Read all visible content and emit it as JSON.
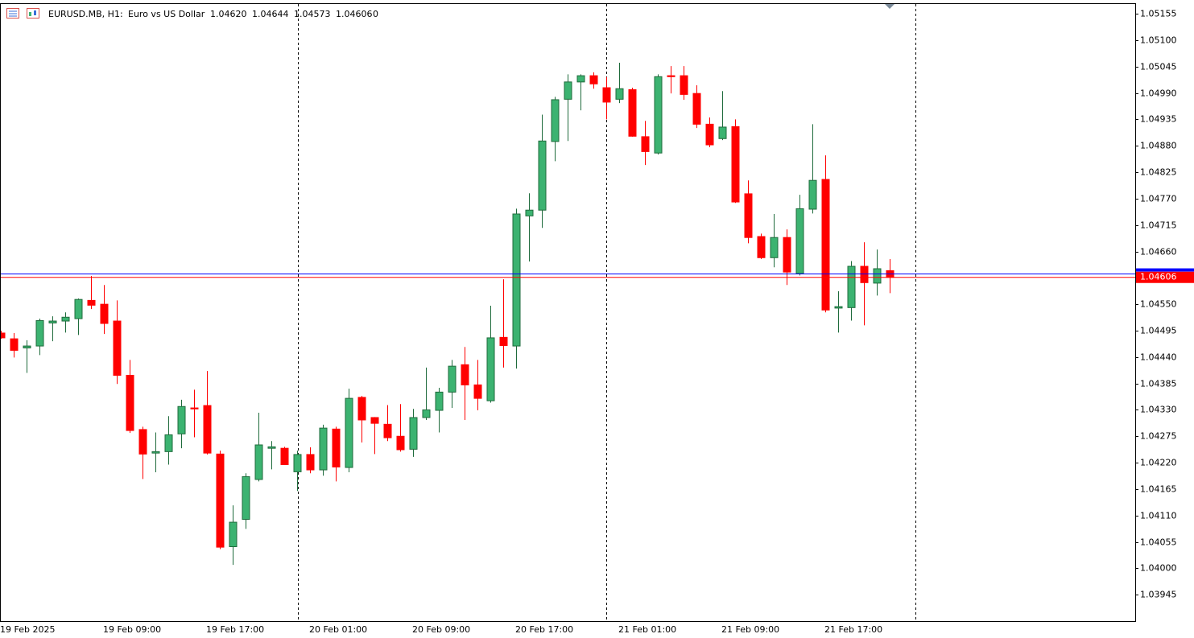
{
  "chart_data": {
    "type": "candlestick",
    "title": "EURUSD.MB, H1:",
    "subtitle": "Euro vs US Dollar",
    "quote": [
      "1.04620",
      "1.04644",
      "1.04573",
      "1.04606"
    ],
    "volume": "0",
    "up_color": "#3cb371",
    "up_line": "#1f6b3c",
    "down_color": "#ff0000",
    "bid_color": "#ff0000",
    "ask_color": "#0000ff",
    "ask": 1.04613,
    "ylim": [
      1.0389,
      1.05177
    ],
    "yticks": [
      1.05155,
      {
        "value": 1.051,
        "label": "1.05100"
      },
      1.05045,
      {
        "value": 1.0499,
        "label": "1.04990"
      },
      1.04935,
      {
        "value": 1.0488,
        "label": "1.04880"
      },
      1.04825,
      {
        "value": 1.0477,
        "label": "1.04770"
      },
      1.04715,
      {
        "value": 1.0466,
        "label": "1.04660"
      },
      {
        "value": 1.0455,
        "label": "1.04550"
      },
      1.04495,
      {
        "value": 1.0444,
        "label": "1.04440"
      },
      1.04385,
      {
        "value": 1.0433,
        "label": "1.04330"
      },
      1.04275,
      {
        "value": 1.0422,
        "label": "1.04220"
      },
      1.04165,
      {
        "value": 1.0411,
        "label": "1.04110"
      },
      1.04055,
      {
        "value": 1.04,
        "label": "1.04000"
      },
      1.03945
    ],
    "categories": [
      "19 Feb 2025",
      null,
      null,
      null,
      null,
      null,
      null,
      null,
      "19 Feb 09:00",
      null,
      null,
      null,
      null,
      null,
      null,
      null,
      "19 Feb 17:00",
      null,
      null,
      null,
      null,
      null,
      null,
      null,
      "20 Feb 01:00",
      null,
      null,
      null,
      null,
      null,
      null,
      null,
      "20 Feb 09:00",
      null,
      null,
      null,
      null,
      null,
      null,
      null,
      "20 Feb 17:00",
      null,
      null,
      null,
      null,
      null,
      null,
      null,
      "21 Feb 01:00",
      null,
      null,
      null,
      null,
      null,
      null,
      null,
      "21 Feb 09:00",
      null,
      null,
      null,
      null,
      null,
      null,
      null,
      "21 Feb 17:00",
      null,
      null,
      null,
      null,
      null
    ],
    "open": [
      1.0449,
      1.04478,
      1.04459,
      1.04463,
      1.04511,
      1.04515,
      1.0452,
      1.04558,
      1.0455,
      1.04515,
      1.04402,
      1.04289,
      1.0424,
      1.04243,
      1.0428,
      1.04334,
      1.04339,
      1.04238,
      1.04045,
      1.04102,
      1.04185,
      1.0425,
      1.0425,
      1.04201,
      1.04237,
      1.04205,
      1.0429,
      1.0421,
      1.04356,
      1.04314,
      1.043,
      1.04275,
      1.04248,
      1.04314,
      1.04329,
      1.04367,
      1.04424,
      1.04382,
      1.04349,
      1.04481,
      1.04463,
      1.04734,
      1.04746,
      1.04889,
      1.04977,
      1.05013,
      1.05026,
      1.05001,
      1.04977,
      1.04997,
      1.04899,
      1.04865,
      1.05026,
      1.05026,
      1.04989,
      1.04925,
      1.04895,
      1.0492,
      1.0478,
      1.04691,
      1.04647,
      1.04689,
      1.04614,
      1.04748,
      1.0481,
      1.04542,
      1.04543,
      1.04629,
      1.04594,
      1.0462
    ],
    "high": [
      1.04495,
      1.0449,
      1.04475,
      1.0452,
      1.04525,
      1.04533,
      1.04562,
      1.04609,
      1.0459,
      1.04558,
      1.04434,
      1.04295,
      1.04283,
      1.04317,
      1.04351,
      1.04372,
      1.04411,
      1.04245,
      1.04131,
      1.04198,
      1.04324,
      1.04265,
      1.04253,
      1.04245,
      1.04252,
      1.04299,
      1.04295,
      1.04374,
      1.04359,
      1.04315,
      1.0434,
      1.04342,
      1.04332,
      1.04418,
      1.04376,
      1.04434,
      1.04461,
      1.04434,
      1.04547,
      1.04602,
      1.04749,
      1.04781,
      1.04945,
      1.04982,
      1.05029,
      1.05029,
      1.05033,
      1.05023,
      1.05053,
      1.05001,
      1.04932,
      1.05029,
      1.05046,
      1.05046,
      1.05006,
      1.04939,
      1.04994,
      1.04935,
      1.04808,
      1.04697,
      1.04738,
      1.04706,
      1.04778,
      1.04925,
      1.0486,
      1.04577,
      1.0464,
      1.04679,
      1.04664,
      1.04644
    ],
    "low": [
      1.04478,
      1.04439,
      1.04407,
      1.04444,
      1.04473,
      1.04491,
      1.04486,
      1.0454,
      1.04488,
      1.04384,
      1.04282,
      1.04186,
      1.042,
      1.04216,
      1.0425,
      1.04273,
      1.04237,
      1.0404,
      1.04007,
      1.04082,
      1.04181,
      1.04206,
      1.04215,
      1.04161,
      1.04198,
      1.04193,
      1.04181,
      1.042,
      1.04262,
      1.04238,
      1.04265,
      1.04243,
      1.04232,
      1.04309,
      1.04283,
      1.04334,
      1.04309,
      1.04329,
      1.04345,
      1.04418,
      1.04416,
      1.04639,
      1.04709,
      1.04848,
      1.0489,
      1.04954,
      1.04999,
      1.04935,
      1.04969,
      1.04899,
      1.0484,
      1.04862,
      1.04989,
      1.04976,
      1.04917,
      1.04877,
      1.04892,
      1.04761,
      1.04677,
      1.04644,
      1.04627,
      1.0459,
      1.0461,
      1.04739,
      1.04533,
      1.04491,
      1.04516,
      1.04506,
      1.04568,
      1.04573
    ],
    "close": [
      1.0448,
      1.04454,
      1.04463,
      1.04516,
      1.04515,
      1.04523,
      1.0456,
      1.04548,
      1.0451,
      1.04402,
      1.04287,
      1.04238,
      1.04243,
      1.04278,
      1.04337,
      1.04332,
      1.0424,
      1.04044,
      1.04096,
      1.04191,
      1.04257,
      1.04253,
      1.04216,
      1.04237,
      1.04205,
      1.04292,
      1.04211,
      1.04354,
      1.04309,
      1.04302,
      1.04272,
      1.04247,
      1.04314,
      1.0433,
      1.04367,
      1.04421,
      1.04382,
      1.04354,
      1.0448,
      1.04464,
      1.04738,
      1.04746,
      1.0489,
      1.04976,
      1.05013,
      1.05026,
      1.05009,
      1.04971,
      1.04999,
      1.049,
      1.04868,
      1.05024,
      1.05024,
      1.04987,
      1.04925,
      1.04882,
      1.04919,
      1.04763,
      1.04689,
      1.04647,
      1.04689,
      1.04617,
      1.04749,
      1.04808,
      1.04538,
      1.04545,
      1.04629,
      1.04595,
      1.04624,
      1.04606
    ]
  }
}
